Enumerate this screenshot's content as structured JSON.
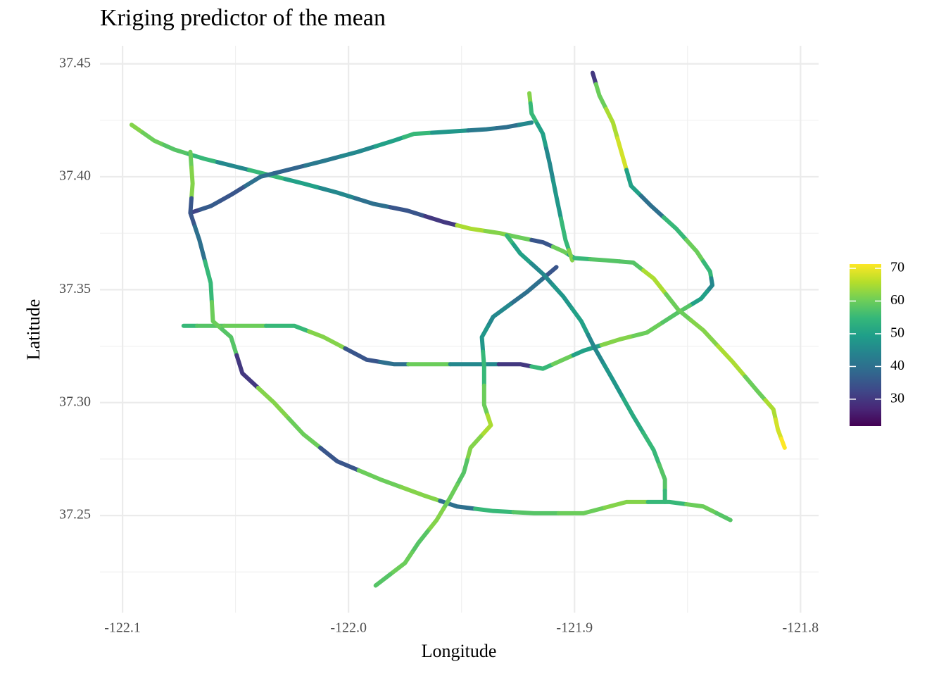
{
  "chart_data": {
    "type": "road-map",
    "title": "Kriging predictor of the mean",
    "x_label": "Longitude",
    "y_label": "Latitude",
    "xlim": [
      -122.11,
      -121.792
    ],
    "ylim": [
      37.207,
      37.458
    ],
    "xticks": [
      -122.1,
      {
        "value": -122,
        "label": "-122.0"
      },
      -121.9,
      -121.8
    ],
    "yticks": [
      37.45,
      {
        "value": 37.4,
        "label": "37.40"
      },
      37.35,
      {
        "value": 37.3,
        "label": "37.30"
      },
      37.25
    ],
    "x_minor_grid": [
      -122.05,
      -121.95,
      -121.85
    ],
    "y_minor_grid": [
      37.425,
      37.375,
      37.325,
      37.275,
      37.225
    ],
    "grid": true,
    "colorbar": {
      "colormap": "viridis",
      "limits": [
        21.8,
        71.3
      ],
      "ticks": [
        30,
        40,
        50,
        60,
        70
      ]
    },
    "series": [
      {
        "x": [
          -122.096,
          -122.086,
          -122.077,
          -122.064,
          -122.052,
          -122.036,
          -122.02,
          -122.005,
          -121.989,
          -121.974,
          -121.958,
          -121.946,
          -121.933,
          -121.924,
          -121.914,
          -121.905,
          -121.9
        ],
        "y": [
          37.423,
          37.416,
          37.412,
          37.408,
          37.405,
          37.401,
          37.397,
          37.393,
          37.388,
          37.385,
          37.38,
          37.377,
          37.375,
          37.373,
          37.371,
          37.367,
          37.364
        ],
        "values": [
          62,
          60,
          58,
          55,
          45,
          55,
          50,
          45,
          40,
          35,
          30,
          65,
          62,
          60,
          35,
          60,
          50
        ]
      },
      {
        "x": [
          -122.07,
          -122.061,
          -122.052,
          -122.039,
          -122.027,
          -122.011,
          -121.996,
          -121.98,
          -121.971,
          -121.955,
          -121.939,
          -121.93,
          -121.919
        ],
        "y": [
          37.384,
          37.387,
          37.392,
          37.4,
          37.403,
          37.407,
          37.411,
          37.416,
          37.419,
          37.42,
          37.421,
          37.422,
          37.424
        ],
        "values": [
          32,
          36,
          35,
          40,
          38,
          42,
          45,
          50,
          55,
          48,
          42,
          40,
          45
        ]
      },
      {
        "x": [
          -121.92,
          -121.919,
          -121.914,
          -121.911,
          -121.908,
          -121.904,
          -121.901
        ],
        "y": [
          37.437,
          37.428,
          37.419,
          37.406,
          37.391,
          37.372,
          37.363
        ],
        "values": [
          62,
          55,
          50,
          45,
          48,
          55,
          62
        ]
      },
      {
        "x": [
          -121.892,
          -121.889,
          -121.883,
          -121.879,
          -121.875,
          -121.866,
          -121.855,
          -121.846,
          -121.84,
          -121.839,
          -121.844,
          -121.854
        ],
        "y": [
          37.446,
          37.436,
          37.424,
          37.41,
          37.396,
          37.387,
          37.377,
          37.367,
          37.358,
          37.352,
          37.346,
          37.34
        ],
        "values": [
          30,
          60,
          65,
          68,
          50,
          40,
          55,
          60,
          55,
          45,
          50,
          58
        ]
      },
      {
        "x": [
          -122.073,
          -122.061,
          -122.049,
          -122.024,
          -122.011,
          -121.992,
          -121.98,
          -121.967,
          -121.943,
          -121.924,
          -121.914,
          -121.905,
          -121.896,
          -121.88,
          -121.868,
          -121.854
        ],
        "y": [
          37.334,
          37.334,
          37.334,
          37.334,
          37.329,
          37.319,
          37.317,
          37.317,
          37.317,
          37.317,
          37.315,
          37.319,
          37.323,
          37.328,
          37.331,
          37.34
        ],
        "values": [
          55,
          58,
          60,
          55,
          62,
          35,
          40,
          60,
          45,
          30,
          55,
          60,
          50,
          62,
          60,
          58
        ]
      },
      {
        "x": [
          -122.07,
          -122.069,
          -122.07,
          -122.066,
          -122.061,
          -122.06,
          -122.052,
          -122.047,
          -122.033,
          -122.02,
          -122.005,
          -121.986,
          -121.967,
          -121.952,
          -121.936,
          -121.918,
          -121.896,
          -121.877,
          -121.858,
          -121.843,
          -121.831
        ],
        "y": [
          37.411,
          37.397,
          37.384,
          37.372,
          37.353,
          37.336,
          37.329,
          37.313,
          37.3,
          37.286,
          37.274,
          37.266,
          37.259,
          37.254,
          37.252,
          37.251,
          37.251,
          37.256,
          37.256,
          37.254,
          37.248
        ],
        "values": [
          60,
          62,
          35,
          40,
          55,
          60,
          58,
          30,
          62,
          60,
          35,
          60,
          62,
          40,
          55,
          58,
          60,
          62,
          55,
          60,
          58
        ]
      },
      {
        "x": [
          -121.908,
          -121.921,
          -121.936,
          -121.941,
          -121.94,
          -121.94,
          -121.937,
          -121.946,
          -121.949,
          -121.955,
          -121.961,
          -121.969,
          -121.975,
          -121.988
        ],
        "y": [
          37.36,
          37.349,
          37.338,
          37.329,
          37.316,
          37.299,
          37.29,
          37.28,
          37.269,
          37.258,
          37.248,
          37.238,
          37.229,
          37.219
        ],
        "values": [
          35,
          40,
          45,
          48,
          55,
          60,
          65,
          62,
          58,
          60,
          62,
          58,
          60,
          58
        ]
      },
      {
        "x": [
          -121.93,
          -121.924,
          -121.914,
          -121.905,
          -121.897,
          -121.891,
          -121.883,
          -121.874,
          -121.865,
          -121.86,
          -121.86
        ],
        "y": [
          37.374,
          37.366,
          37.357,
          37.347,
          37.336,
          37.324,
          37.31,
          37.294,
          37.279,
          37.266,
          37.256
        ],
        "values": [
          55,
          50,
          45,
          48,
          50,
          45,
          48,
          52,
          55,
          58,
          55
        ]
      },
      {
        "x": [
          -121.9,
          -121.886,
          -121.874,
          -121.865,
          -121.854,
          -121.843,
          -121.83,
          -121.819,
          -121.812,
          -121.81,
          -121.807
        ],
        "y": [
          37.364,
          37.363,
          37.362,
          37.355,
          37.341,
          37.332,
          37.318,
          37.305,
          37.297,
          37.288,
          37.28
        ],
        "values": [
          55,
          58,
          58,
          65,
          60,
          62,
          65,
          60,
          65,
          68,
          72
        ]
      }
    ]
  }
}
